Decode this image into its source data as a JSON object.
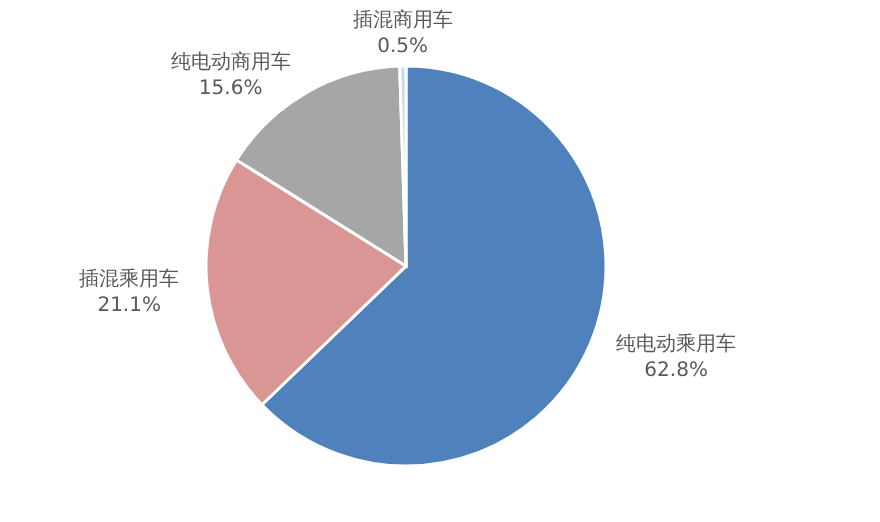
{
  "chart_data": {
    "type": "pie",
    "categories": [
      "纯电动乘用车",
      "插混乘用车",
      "纯电动商用车",
      "插混商用车"
    ],
    "values": [
      62.8,
      21.1,
      15.6,
      0.5
    ],
    "value_labels": [
      "62.8%",
      "21.1%",
      "15.6%",
      "0.5%"
    ],
    "colors": [
      "#4f81bd",
      "#d99694",
      "#a6a6a6",
      "#c6d9f1"
    ]
  }
}
